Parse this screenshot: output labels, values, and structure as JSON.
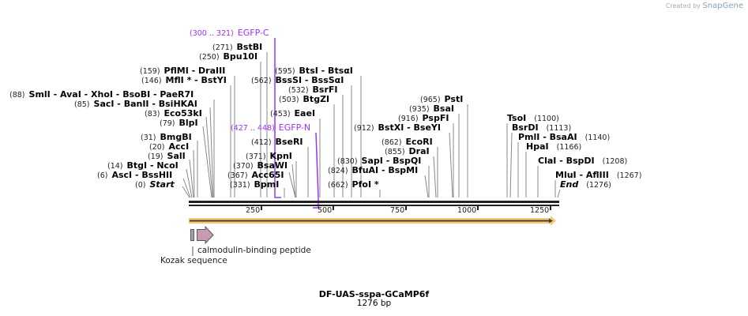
{
  "branding": {
    "created_by": "Created by",
    "product": "SnapGene"
  },
  "sequence": {
    "name": "DF-UAS-sspa-GCaMP6f",
    "length": "1276 bp"
  },
  "features_top": [
    {
      "range": "(300 .. 321)",
      "name": "EGFP-C",
      "color": "#9b30ff"
    },
    {
      "range": "(427 .. 448)",
      "name": "EGFP-N",
      "color": "#9b30ff"
    }
  ],
  "sites": [
    {
      "pos": "(0)",
      "name": "Start"
    },
    {
      "pos": "(6)",
      "name": "AscI   - BssHII"
    },
    {
      "pos": "(14)",
      "name": "BtgI   - NcoI"
    },
    {
      "pos": "(19)",
      "name": "SalI"
    },
    {
      "pos": "(20)",
      "name": "AccI"
    },
    {
      "pos": "(31)",
      "name": "BmgBI"
    },
    {
      "pos": "(79)",
      "name": "BlpI"
    },
    {
      "pos": "(83)",
      "name": "Eco53kI"
    },
    {
      "pos": "(85)",
      "name": "SacI   - BanII   - BsiHKAI"
    },
    {
      "pos": "(88)",
      "name": "SmlI   - AvaI   - XhoI   - BsoBI   - PaeR7I"
    },
    {
      "pos": "(146)",
      "name": "MflI *  - BstYI"
    },
    {
      "pos": "(159)",
      "name": "PflMI   - DraIII"
    },
    {
      "pos": "(250)",
      "name": "Bpu10I"
    },
    {
      "pos": "(271)",
      "name": "BstBI"
    },
    {
      "pos": "(331)",
      "name": "BpmI"
    },
    {
      "pos": "(367)",
      "name": "Acc65I"
    },
    {
      "pos": "(370)",
      "name": "BsaWI"
    },
    {
      "pos": "(371)",
      "name": "KpnI"
    },
    {
      "pos": "(412)",
      "name": "BseRI"
    },
    {
      "pos": "(453)",
      "name": "EaeI"
    },
    {
      "pos": "(503)",
      "name": "BtgZI"
    },
    {
      "pos": "(532)",
      "name": "BsrFI"
    },
    {
      "pos": "(562)",
      "name": "BssSI   - BssSαI"
    },
    {
      "pos": "(595)",
      "name": "BtsI   - BtsαI"
    },
    {
      "pos": "(662)",
      "name": "PfoI *"
    },
    {
      "pos": "(824)",
      "name": "BfuAI   - BspMI"
    },
    {
      "pos": "(830)",
      "name": "SapI   - BspQI"
    },
    {
      "pos": "(855)",
      "name": "DraI"
    },
    {
      "pos": "(862)",
      "name": "EcoRI"
    },
    {
      "pos": "(912)",
      "name": "BstXI   - BseYI"
    },
    {
      "pos": "(916)",
      "name": "PspFI"
    },
    {
      "pos": "(935)",
      "name": "BsaI"
    },
    {
      "pos": "(965)",
      "name": "PstI"
    },
    {
      "pos": "(1100)",
      "name": "TsoI"
    },
    {
      "pos": "(1113)",
      "name": "BsrDI"
    },
    {
      "pos": "(1140)",
      "name": "PmlI   - BsaAI"
    },
    {
      "pos": "(1166)",
      "name": "HpaI"
    },
    {
      "pos": "(1208)",
      "name": "ClaI   - BspDI"
    },
    {
      "pos": "(1267)",
      "name": "MluI   - AflIII"
    },
    {
      "pos": "(1276)",
      "name": "End"
    }
  ],
  "ruler": {
    "ticks": [
      "250",
      "500",
      "750",
      "1000",
      "1250"
    ]
  },
  "features": [
    {
      "name": "calmodulin-binding peptide",
      "color": "#c89bb3"
    },
    {
      "name": "Kozak sequence",
      "color": "#a0a4ad"
    }
  ],
  "orf_color": "#f7c97a"
}
